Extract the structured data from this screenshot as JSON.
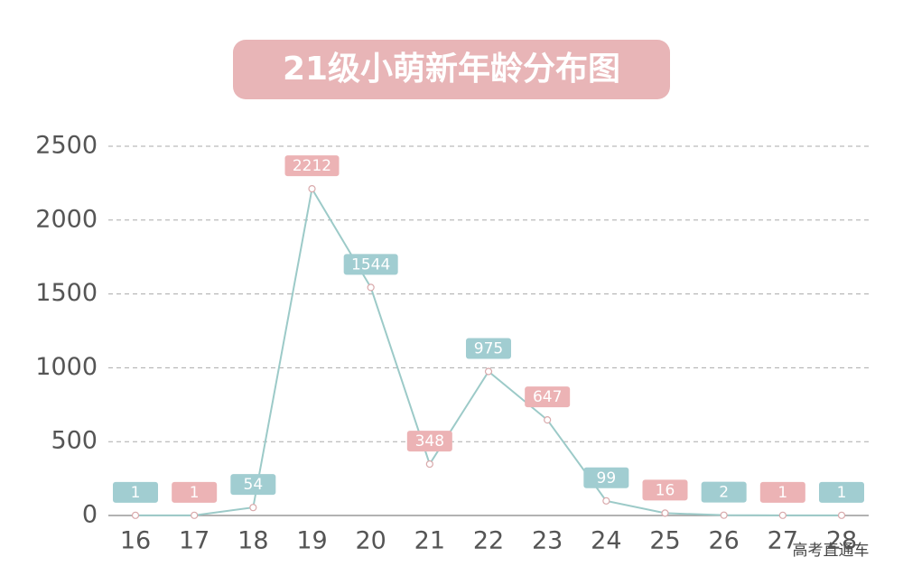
{
  "chart_data": {
    "type": "line",
    "title": "21级小萌新年龄分布图",
    "categories": [
      "16",
      "17",
      "18",
      "19",
      "20",
      "21",
      "22",
      "23",
      "24",
      "25",
      "26",
      "27",
      "28"
    ],
    "values": [
      1,
      1,
      54,
      2212,
      1544,
      348,
      975,
      647,
      99,
      16,
      2,
      1,
      1
    ],
    "color": "#9ccac8",
    "label_colors": [
      "#a1cdd1",
      "#ecb3b5",
      "#a1cdd1",
      "#ecb3b5",
      "#a1cdd1",
      "#ecb3b5",
      "#a1cdd1",
      "#ecb3b5",
      "#a1cdd1",
      "#ecb3b5",
      "#a1cdd1",
      "#ecb3b5",
      "#a1cdd1"
    ],
    "ylim": [
      0,
      2500
    ],
    "yticks": [
      0,
      500,
      1000,
      1500,
      2000,
      2500
    ],
    "grid": true,
    "watermark": "高考直通车"
  }
}
